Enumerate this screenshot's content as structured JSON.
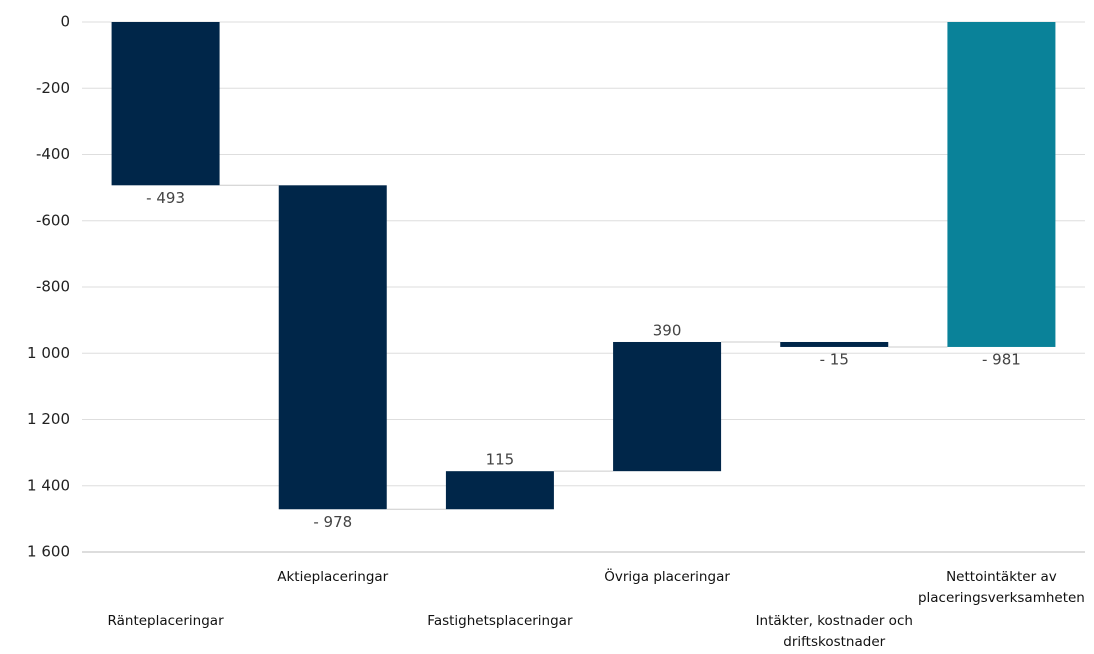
{
  "chart_data": {
    "type": "waterfall",
    "categories": [
      "Ränteplaceringar",
      "Aktieplaceringar",
      "Fastighetsplaceringar",
      "Övriga placeringar",
      "Intäkter, kostnader och driftskostnader",
      "Nettointäkter av placeringsverksamheten"
    ],
    "values": [
      -493,
      -978,
      115,
      390,
      -15,
      -981
    ],
    "value_labels": [
      "- 493",
      "- 978",
      "115",
      "390",
      "- 15",
      "- 981"
    ],
    "is_total": [
      false,
      false,
      false,
      false,
      false,
      true
    ],
    "color": "#002649",
    "total_color": "#0a8299",
    "ylim": [
      -1600,
      0
    ],
    "yticks": [
      0,
      -200,
      -400,
      -600,
      -800,
      {
        "value": -1000,
        "label": "1 000"
      },
      {
        "value": -1200,
        "label": "1 200"
      },
      {
        "value": -1400,
        "label": "1 400"
      },
      {
        "value": -1600,
        "label": "1 600"
      }
    ],
    "grid": true
  }
}
